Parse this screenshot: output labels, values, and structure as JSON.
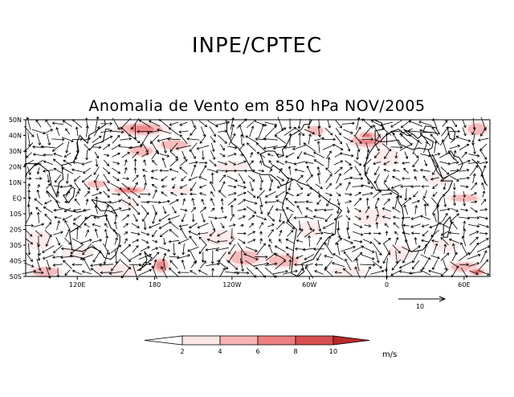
{
  "header": {
    "organization": "INPE/CPTEC",
    "title": "Anomalia de Vento em 850 hPa NOV/2005"
  },
  "map": {
    "lat_labels": [
      "50N",
      "40N",
      "30N",
      "20N",
      "10N",
      "EQ",
      "10S",
      "20S",
      "30S",
      "40S",
      "50S"
    ],
    "lon_labels": [
      "120E",
      "180",
      "120W",
      "60W",
      "0",
      "60E"
    ],
    "lon_values": [
      120,
      180,
      240,
      300,
      360,
      420
    ],
    "lon_range": [
      80,
      440
    ],
    "lat_range": [
      -50,
      50
    ],
    "vector_field": "850 hPa wind anomaly vectors",
    "shading": "wind anomaly magnitude"
  },
  "reference_vector": {
    "label": "10",
    "units": "m/s"
  },
  "colorbar": {
    "ticks": [
      "2",
      "4",
      "6",
      "8",
      "10"
    ],
    "colors": [
      "#ffffff",
      "#fde6e6",
      "#f7b3b3",
      "#ec7f7f",
      "#d74f4f",
      "#b82a2a"
    ],
    "units": "m/s"
  }
}
